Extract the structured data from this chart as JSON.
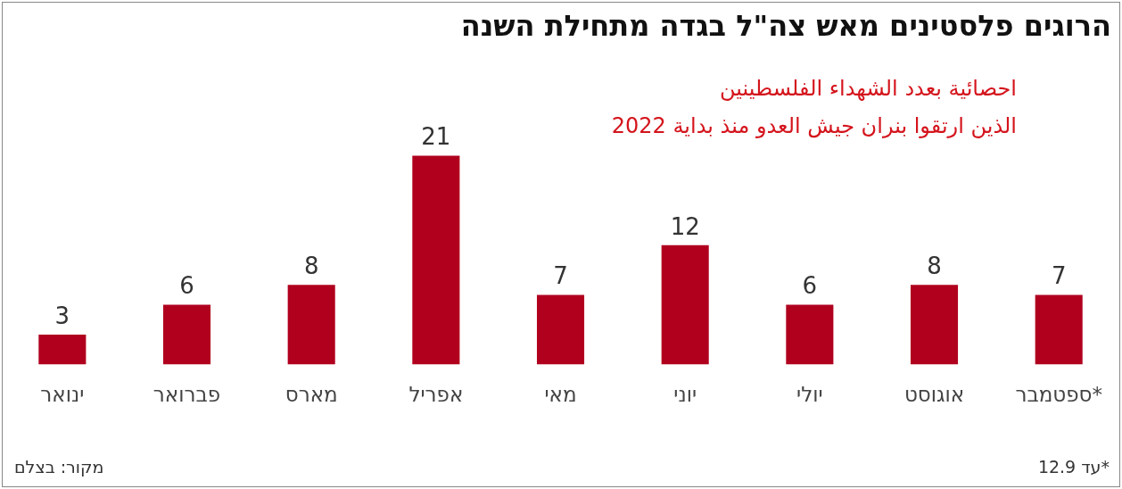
{
  "chart_data": {
    "type": "bar",
    "title": "הרוגים פלסטינים מאש צה\"ל בגדה מתחילת השנה",
    "subtitle": "احصائية بعدد الشهداء الفلسطينين\nالذين ارتقوا بنران جيش العدو منذ بداية 2022",
    "categories": [
      "ינואר",
      "פברואר",
      "מארס",
      "אפריל",
      "מאי",
      "יוני",
      "יולי",
      "אוגוסט",
      "ספטמבר*"
    ],
    "values": [
      3,
      6,
      8,
      21,
      7,
      12,
      6,
      8,
      7
    ],
    "color": "#b0001e",
    "data_labels": true,
    "grid": false,
    "legend": false,
    "tick_labels": "x",
    "annotations": [
      "מקור: בצלם",
      "*עד 12.9"
    ]
  }
}
